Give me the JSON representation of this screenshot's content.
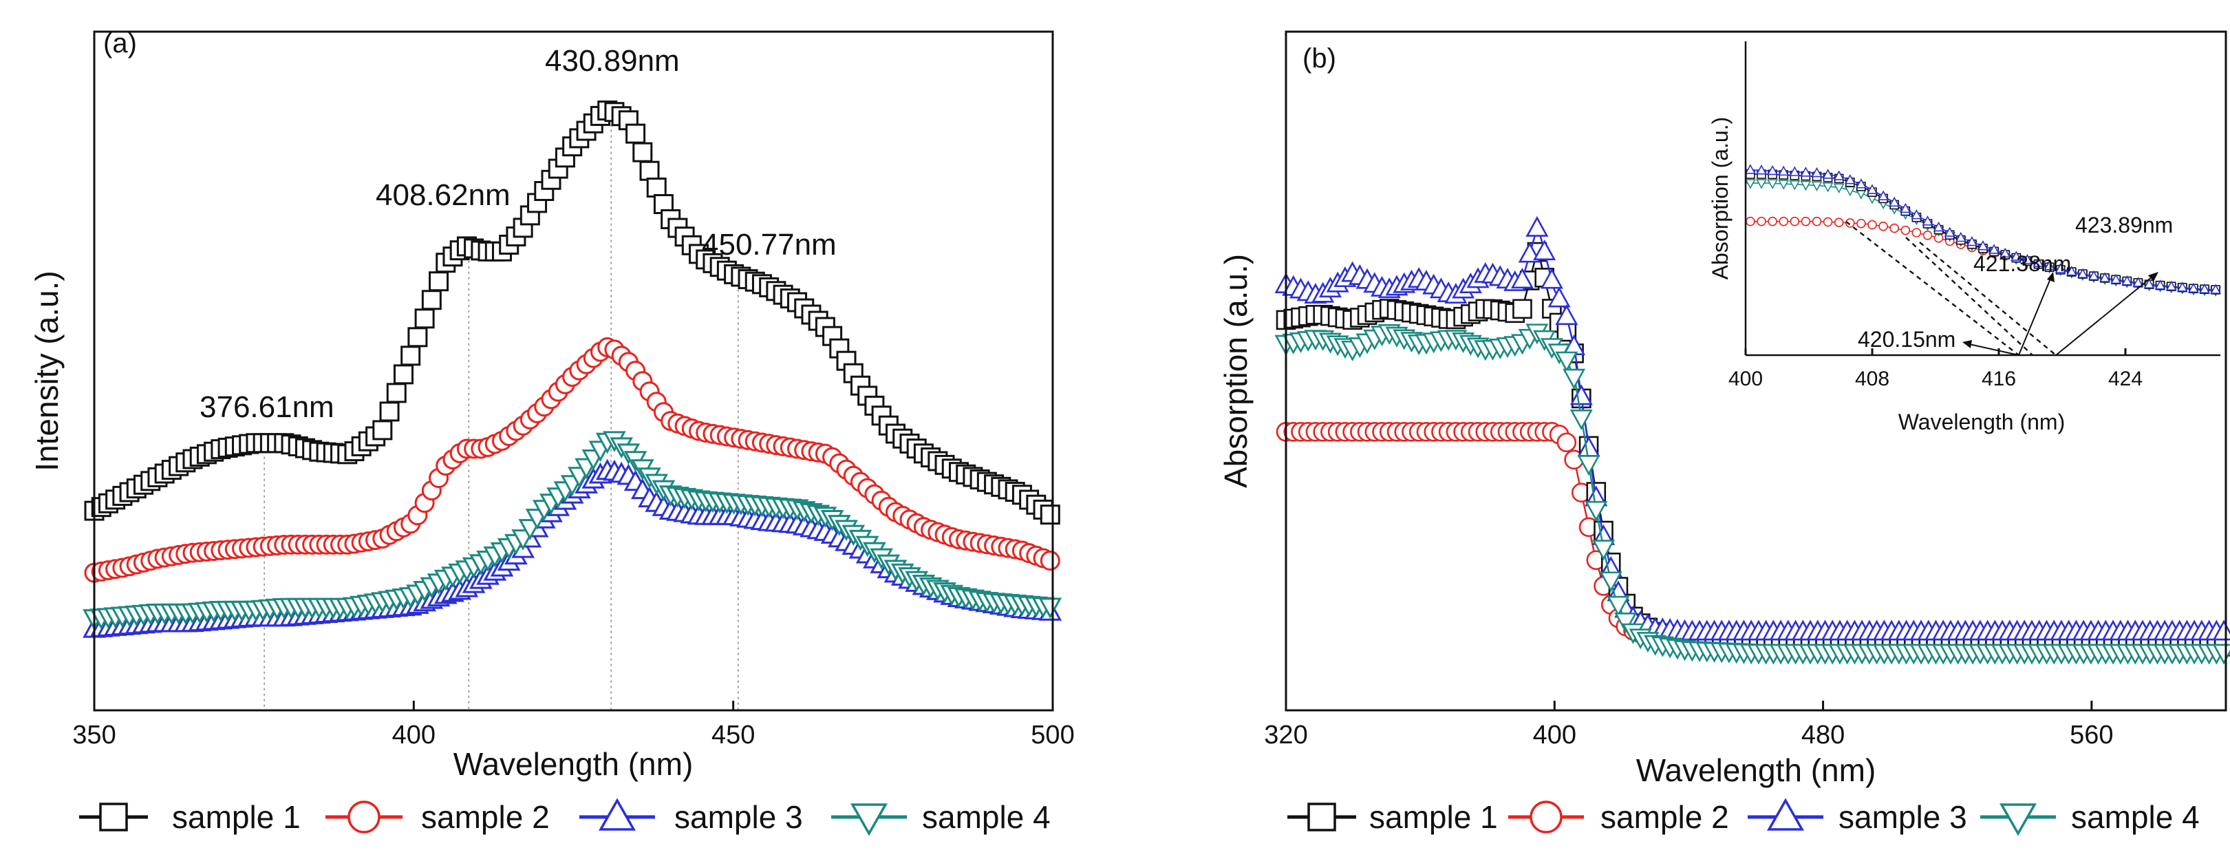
{
  "chart_data": [
    {
      "panel": "(a)",
      "type": "line",
      "xlabel": "Wavelength (nm)",
      "ylabel": "Intensity (a.u.)",
      "xlim": [
        350,
        500
      ],
      "ylim": [
        0,
        100
      ],
      "xticks": [
        350,
        400,
        450,
        500
      ],
      "yticks_shown": false,
      "x": [
        350,
        355,
        360,
        365,
        370,
        375,
        380,
        385,
        390,
        395,
        400,
        405,
        408,
        411,
        414,
        417,
        420,
        425,
        430,
        431,
        434,
        437,
        440,
        445,
        450,
        455,
        460,
        465,
        470,
        475,
        480,
        485,
        490,
        495,
        500
      ],
      "series": [
        {
          "name": "sample 1",
          "color": "#111111",
          "marker": "square",
          "values": [
            26,
            29,
            32,
            35,
            37,
            38,
            38,
            36.5,
            36,
            40,
            55,
            70,
            73,
            72,
            72,
            76,
            82,
            91,
            97,
            97,
            95,
            86,
            78,
            71,
            68,
            66,
            63,
            58,
            48,
            40,
            36,
            33,
            31,
            29,
            25
          ]
        },
        {
          "name": "sample 2",
          "color": "#e8231f",
          "marker": "circle",
          "values": [
            15,
            16,
            17.5,
            18.5,
            19,
            19.5,
            20,
            20,
            20,
            21,
            24,
            34,
            37,
            37,
            38.5,
            41,
            44,
            50,
            55,
            55,
            52,
            47,
            42,
            40,
            39,
            38,
            37,
            36,
            31,
            26,
            23,
            21,
            20,
            19,
            17
          ]
        },
        {
          "name": "sample 3",
          "color": "#2c2fd8",
          "marker": "triangle-up",
          "values": [
            5,
            5.5,
            6,
            6,
            6.5,
            7,
            7,
            7.5,
            8,
            8.5,
            9,
            11,
            12,
            14,
            16,
            19,
            24,
            29,
            33,
            33,
            32,
            28,
            26,
            25,
            25,
            24,
            23.5,
            22,
            19,
            15,
            12.5,
            10.5,
            9.5,
            8.5,
            8
          ]
        },
        {
          "name": "sample 4",
          "color": "#1a8a80",
          "marker": "triangle-down",
          "values": [
            7,
            7.5,
            8,
            8,
            8.5,
            8.5,
            9,
            9,
            9,
            10,
            11,
            14,
            15.5,
            17,
            19,
            21,
            26,
            31,
            38,
            39,
            36,
            32,
            29,
            28,
            27.5,
            27,
            26.5,
            25,
            21,
            16,
            13,
            11,
            10,
            9.5,
            9
          ]
        }
      ],
      "annotations": [
        {
          "text": "376.61nm",
          "x": 376.61
        },
        {
          "text": "408.62nm",
          "x": 408.62
        },
        {
          "text": "430.89nm",
          "x": 430.89
        },
        {
          "text": "450.77nm",
          "x": 450.77
        }
      ],
      "legend": [
        "sample 1",
        "sample 2",
        "sample 3",
        "sample 4"
      ],
      "legend_position": "bottom"
    },
    {
      "panel": "(b)",
      "type": "line",
      "xlabel": "Wavelength (nm)",
      "ylabel": "Absorption (a.u.)",
      "xlim": [
        320,
        600
      ],
      "ylim": [
        0,
        100
      ],
      "xticks": [
        320,
        400,
        480,
        560
      ],
      "yticks_shown": false,
      "x": [
        320,
        330,
        340,
        350,
        360,
        370,
        380,
        390,
        395,
        400,
        403,
        406,
        409,
        412,
        415,
        418,
        421,
        424,
        430,
        440,
        460,
        480,
        520,
        560,
        600
      ],
      "series": [
        {
          "name": "sample 1",
          "color": "#111111",
          "marker": "square",
          "values": [
            62,
            63,
            62,
            64,
            63,
            62,
            64,
            63,
            74,
            62,
            61,
            56,
            45,
            34,
            25,
            18,
            14,
            11,
            9,
            8,
            7.5,
            7,
            6.5,
            6.5,
            6.5
          ]
        },
        {
          "name": "sample 2",
          "color": "#e8231f",
          "marker": "circle",
          "values": [
            43,
            43,
            43,
            43,
            43,
            43,
            43,
            43,
            43,
            43,
            42,
            38,
            30,
            22,
            16,
            12,
            10,
            9,
            8,
            7.5,
            7,
            7,
            7,
            7,
            7
          ]
        },
        {
          "name": "sample 3",
          "color": "#2c2fd8",
          "marker": "triangle-up",
          "values": [
            68,
            66,
            70,
            67,
            69,
            66,
            70,
            68,
            78,
            67,
            64,
            57,
            45,
            33,
            24,
            17,
            13,
            11,
            9.5,
            9,
            9,
            9,
            9,
            9,
            9
          ]
        },
        {
          "name": "sample 4",
          "color": "#1a8a80",
          "marker": "triangle-down",
          "values": [
            58,
            59,
            57,
            60,
            58,
            59,
            57,
            58,
            60,
            57,
            56,
            52,
            42,
            31,
            22,
            15,
            11,
            8.5,
            7,
            6,
            5.5,
            5.5,
            5.5,
            5.5,
            5.5
          ]
        }
      ],
      "legend": [
        "sample 1",
        "sample 2",
        "sample 3",
        "sample 4"
      ],
      "legend_position": "bottom",
      "inset": {
        "xlabel": "Wavelength (nm)",
        "ylabel": "Absorption (a.u.)",
        "xlim": [
          400,
          430
        ],
        "xticks": [
          400,
          408,
          416,
          424
        ],
        "x": [
          400,
          401.5,
          403,
          404.5,
          406,
          407.5,
          409,
          410.5,
          412,
          413.5,
          415,
          416.5,
          418,
          419.5,
          421,
          422.5,
          424,
          425.5,
          427,
          428.5,
          430
        ],
        "series": [
          {
            "name": "sample 1",
            "values": [
              76,
              76,
              75.5,
              75,
              74,
              70,
              64,
              58,
              52,
              47,
              43,
              40,
              37,
              34,
              32,
              30,
              28.5,
              27,
              26,
              25,
              24.5
            ]
          },
          {
            "name": "sample 2",
            "values": [
              55,
              55,
              55,
              55,
              54.5,
              54,
              52.5,
              50.5,
              48,
              45,
              42,
              39.5,
              37,
              34.5,
              32,
              30,
              28.5,
              27,
              26,
              25,
              24.5
            ]
          },
          {
            "name": "sample 3",
            "values": [
              78,
              77.5,
              77,
              76.5,
              75,
              71,
              65,
              59,
              53,
              48,
              44,
              40.5,
              37.5,
              34.5,
              32,
              30,
              28.5,
              27,
              26,
              25,
              24.5
            ]
          },
          {
            "name": "sample 4",
            "values": [
              72,
              72,
              71.5,
              71,
              70,
              67,
              62,
              57,
              51.5,
              46.5,
              42.5,
              39.5,
              36.5,
              34,
              31.5,
              29.5,
              28,
              26.5,
              25.5,
              24.5,
              24
            ]
          }
        ],
        "annotations": [
          {
            "text": "420.15nm",
            "x": 420.15
          },
          {
            "text": "421.38nm",
            "x": 421.38
          },
          {
            "text": "423.89nm",
            "x": 423.89
          }
        ]
      }
    }
  ]
}
